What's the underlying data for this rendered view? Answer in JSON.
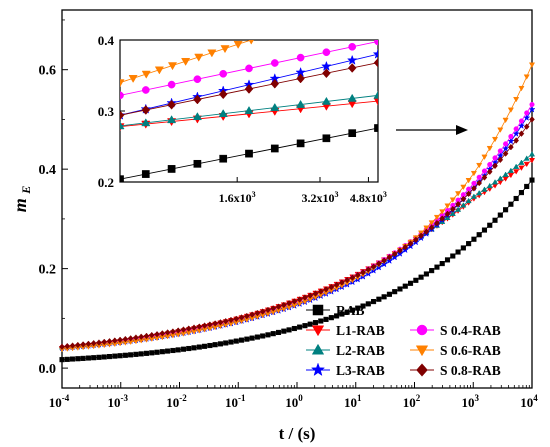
{
  "chart_data": [
    {
      "type": "scatter",
      "title": "",
      "xlabel": "t / (s)",
      "ylabel": "m_E",
      "xscale": "log",
      "xlim": [
        0.0001,
        10000
      ],
      "ylim": [
        -0.04,
        0.72
      ],
      "xticks": [
        0.0001,
        0.001,
        0.01,
        0.1,
        1,
        10,
        100,
        1000,
        10000
      ],
      "xtick_labels": [
        {
          "base": "10",
          "exp": "-4"
        },
        {
          "base": "10",
          "exp": "-3"
        },
        {
          "base": "10",
          "exp": "-2"
        },
        {
          "base": "10",
          "exp": "-1"
        },
        {
          "base": "10",
          "exp": "0"
        },
        {
          "base": "10",
          "exp": "1"
        },
        {
          "base": "10",
          "exp": "2"
        },
        {
          "base": "10",
          "exp": "3"
        },
        {
          "base": "10",
          "exp": "4"
        }
      ],
      "yticks": [
        0.0,
        0.2,
        0.4,
        0.6
      ],
      "ytick_labels": [
        "0.0",
        "0.2",
        "0.4",
        "0.6"
      ],
      "grid": false,
      "legend": "bottom-right",
      "series": [
        {
          "name": "RAB",
          "marker": "square",
          "color": "#000000",
          "x": [
            0.0001,
            0.001,
            0.01,
            0.1,
            1,
            10,
            100,
            1000,
            10000
          ],
          "y": [
            0.017,
            0.025,
            0.037,
            0.055,
            0.081,
            0.119,
            0.175,
            0.258,
            0.378
          ]
        },
        {
          "name": "L1-RAB",
          "marker": "triangle-down",
          "color": "#ff0000",
          "x": [
            0.0001,
            0.001,
            0.01,
            0.1,
            1,
            10,
            100,
            1000,
            10000
          ],
          "y": [
            0.04,
            0.054,
            0.074,
            0.1,
            0.137,
            0.187,
            0.257,
            0.34,
            0.418
          ]
        },
        {
          "name": "L2-RAB",
          "marker": "triangle-up",
          "color": "#008080",
          "x": [
            0.0001,
            0.001,
            0.01,
            0.1,
            1,
            10,
            100,
            1000,
            10000
          ],
          "y": [
            0.042,
            0.055,
            0.075,
            0.1,
            0.136,
            0.186,
            0.256,
            0.344,
            0.43
          ]
        },
        {
          "name": "L3-RAB",
          "marker": "star",
          "color": "#0000ff",
          "x": [
            0.0001,
            0.001,
            0.01,
            0.1,
            1,
            10,
            100,
            1000,
            10000
          ],
          "y": [
            0.04,
            0.052,
            0.069,
            0.093,
            0.127,
            0.176,
            0.251,
            0.361,
            0.52
          ]
        },
        {
          "name": "S 0.4-RAB",
          "marker": "circle",
          "color": "#ff00ff",
          "x": [
            0.0001,
            0.001,
            0.01,
            0.1,
            1,
            10,
            100,
            1000,
            10000
          ],
          "y": [
            0.042,
            0.055,
            0.073,
            0.098,
            0.134,
            0.185,
            0.26,
            0.37,
            0.53
          ]
        },
        {
          "name": "S 0.6-RAB",
          "marker": "triangle-down",
          "color": "#ff8000",
          "x": [
            0.0001,
            0.001,
            0.01,
            0.1,
            1,
            10,
            100,
            1000,
            10000
          ],
          "y": [
            0.038,
            0.05,
            0.068,
            0.093,
            0.128,
            0.18,
            0.26,
            0.39,
            0.61
          ]
        },
        {
          "name": "S 0.8-RAB",
          "marker": "diamond",
          "color": "#800000",
          "x": [
            0.0001,
            0.001,
            0.01,
            0.1,
            1,
            10,
            100,
            1000,
            10000
          ],
          "y": [
            0.043,
            0.057,
            0.076,
            0.1,
            0.136,
            0.185,
            0.256,
            0.36,
            0.5
          ]
        }
      ]
    },
    {
      "type": "scatter",
      "title": "",
      "xlabel": "",
      "ylabel": "",
      "xscale": "log",
      "xlim": [
        600,
        5200
      ],
      "ylim": [
        0.2,
        0.4
      ],
      "xticks": [
        1600,
        3200,
        4800
      ],
      "xtick_labels": [
        {
          "base": "1.6x10",
          "exp": "3"
        },
        {
          "base": "3.2x10",
          "exp": "3"
        },
        {
          "base": "4.8x10",
          "exp": "3"
        }
      ],
      "yticks": [
        0.2,
        0.3,
        0.4
      ],
      "ytick_labels": [
        "0.2",
        "0.3",
        "0.4"
      ],
      "grid": false,
      "series": [
        {
          "name": "RAB",
          "marker": "square",
          "color": "#000000",
          "x": [
            600,
            5200
          ],
          "y": [
            0.204,
            0.276
          ]
        },
        {
          "name": "L1-RAB",
          "marker": "triangle-down",
          "color": "#ff0000",
          "x": [
            600,
            5200
          ],
          "y": [
            0.278,
            0.314
          ]
        },
        {
          "name": "L2-RAB",
          "marker": "triangle-up",
          "color": "#008080",
          "x": [
            600,
            5200
          ],
          "y": [
            0.279,
            0.322
          ]
        },
        {
          "name": "L3-RAB",
          "marker": "star",
          "color": "#0000ff",
          "x": [
            600,
            5200
          ],
          "y": [
            0.294,
            0.38
          ]
        },
        {
          "name": "S 0.4-RAB",
          "marker": "circle",
          "color": "#ff00ff",
          "x": [
            600,
            5200
          ],
          "y": [
            0.322,
            0.398
          ]
        },
        {
          "name": "S 0.6-RAB",
          "marker": "triangle-down",
          "color": "#ff8000",
          "x": [
            600,
            1800
          ],
          "y": [
            0.34,
            0.4
          ]
        },
        {
          "name": "S 0.8-RAB",
          "marker": "diamond",
          "color": "#800000",
          "x": [
            600,
            5200
          ],
          "y": [
            0.294,
            0.368
          ]
        }
      ]
    }
  ]
}
